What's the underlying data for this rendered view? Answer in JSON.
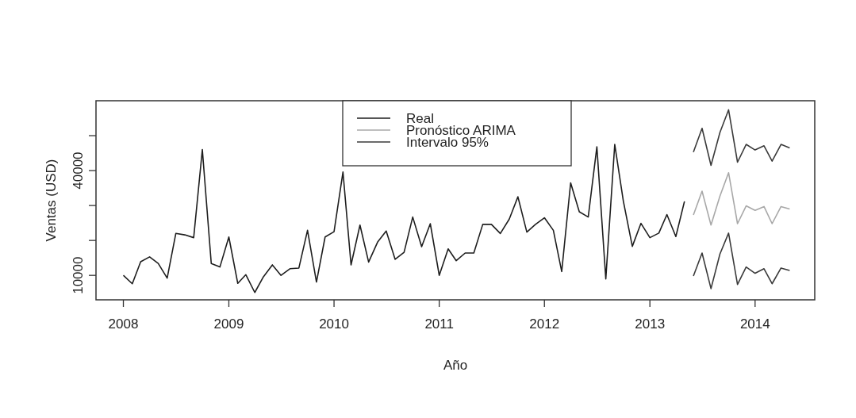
{
  "chart_data": {
    "type": "line",
    "xlabel": "Año",
    "ylabel": "Ventas (USD)",
    "xlim": [
      "2007-09-28",
      "2014-07-27"
    ],
    "xticks": [
      "2008",
      "2009",
      "2010",
      "2011",
      "2012",
      "2013",
      "2014"
    ],
    "ylim": [
      3000,
      60000
    ],
    "yticks": [
      {
        "value": 10000,
        "label": "10000"
      },
      {
        "value": 20000,
        "label": null
      },
      {
        "value": 30000,
        "label": null
      },
      {
        "value": 40000,
        "label": "40000"
      },
      {
        "value": 50000,
        "label": null
      }
    ],
    "legend": "top",
    "grid": false,
    "line_style": "solid",
    "marker": "none",
    "series": [
      {
        "name": "Real",
        "color": "#1e1e1e",
        "x": [
          "2008-01",
          "2008-02",
          "2008-03",
          "2008-04",
          "2008-05",
          "2008-06",
          "2008-07",
          "2008-08",
          "2008-09",
          "2008-10",
          "2008-11",
          "2008-12",
          "2009-01",
          "2009-02",
          "2009-03",
          "2009-04",
          "2009-05",
          "2009-06",
          "2009-07",
          "2009-08",
          "2009-09",
          "2009-10",
          "2009-11",
          "2009-12",
          "2010-01",
          "2010-02",
          "2010-03",
          "2010-04",
          "2010-05",
          "2010-06",
          "2010-07",
          "2010-08",
          "2010-09",
          "2010-10",
          "2010-11",
          "2010-12",
          "2011-01",
          "2011-02",
          "2011-03",
          "2011-04",
          "2011-05",
          "2011-06",
          "2011-07",
          "2011-08",
          "2011-09",
          "2011-10",
          "2011-11",
          "2011-12",
          "2012-01",
          "2012-02",
          "2012-03",
          "2012-04",
          "2012-05",
          "2012-06",
          "2012-07",
          "2012-08",
          "2012-09",
          "2012-10",
          "2012-11",
          "2012-12",
          "2013-01",
          "2013-02",
          "2013-03",
          "2013-04",
          "2013-05"
        ],
        "values": [
          10000,
          7600,
          13900,
          15300,
          13400,
          9200,
          22000,
          21600,
          20800,
          46000,
          13400,
          12400,
          21000,
          7700,
          10200,
          5100,
          9600,
          13000,
          10000,
          11900,
          12100,
          22900,
          8100,
          21000,
          22500,
          39600,
          13000,
          24400,
          13800,
          19500,
          22700,
          14600,
          16600,
          26700,
          18200,
          24800,
          10000,
          17600,
          14200,
          16400,
          16400,
          24600,
          24600,
          22000,
          26100,
          32500,
          22400,
          24600,
          26500,
          22900,
          11100,
          36500,
          28200,
          26700,
          46800,
          9000,
          47500,
          31200,
          18300,
          24900,
          20800,
          22100,
          27400,
          21100,
          31200
        ]
      },
      {
        "name": "Pronóstico ARIMA",
        "color": "#a8a8a8",
        "x": [
          "2013-06",
          "2013-07",
          "2013-08",
          "2013-09",
          "2013-10",
          "2013-11",
          "2013-12",
          "2014-01",
          "2014-02",
          "2014-03",
          "2014-04",
          "2014-05"
        ],
        "values": [
          27300,
          34100,
          24400,
          32700,
          39400,
          24800,
          29900,
          28600,
          29700,
          24800,
          29700,
          29000
        ]
      },
      {
        "name": "Intervalo 95%",
        "color": "#3a3a3a",
        "x": [
          "2013-06",
          "2013-07",
          "2013-08",
          "2013-09",
          "2013-10",
          "2013-11",
          "2013-12",
          "2014-01",
          "2014-02",
          "2014-03",
          "2014-04",
          "2014-05"
        ],
        "values": [
          45300,
          52100,
          41500,
          50900,
          57400,
          42400,
          47500,
          45900,
          47100,
          42700,
          47500,
          46500
        ]
      },
      {
        "color": "#3a3a3a",
        "x": [
          "2013-06",
          "2013-07",
          "2013-08",
          "2013-09",
          "2013-10",
          "2013-11",
          "2013-12",
          "2014-01",
          "2014-02",
          "2014-03",
          "2014-04",
          "2014-05"
        ],
        "values": [
          9800,
          16400,
          6200,
          16100,
          22100,
          7400,
          12400,
          10600,
          11900,
          7600,
          12100,
          11400
        ]
      }
    ]
  }
}
